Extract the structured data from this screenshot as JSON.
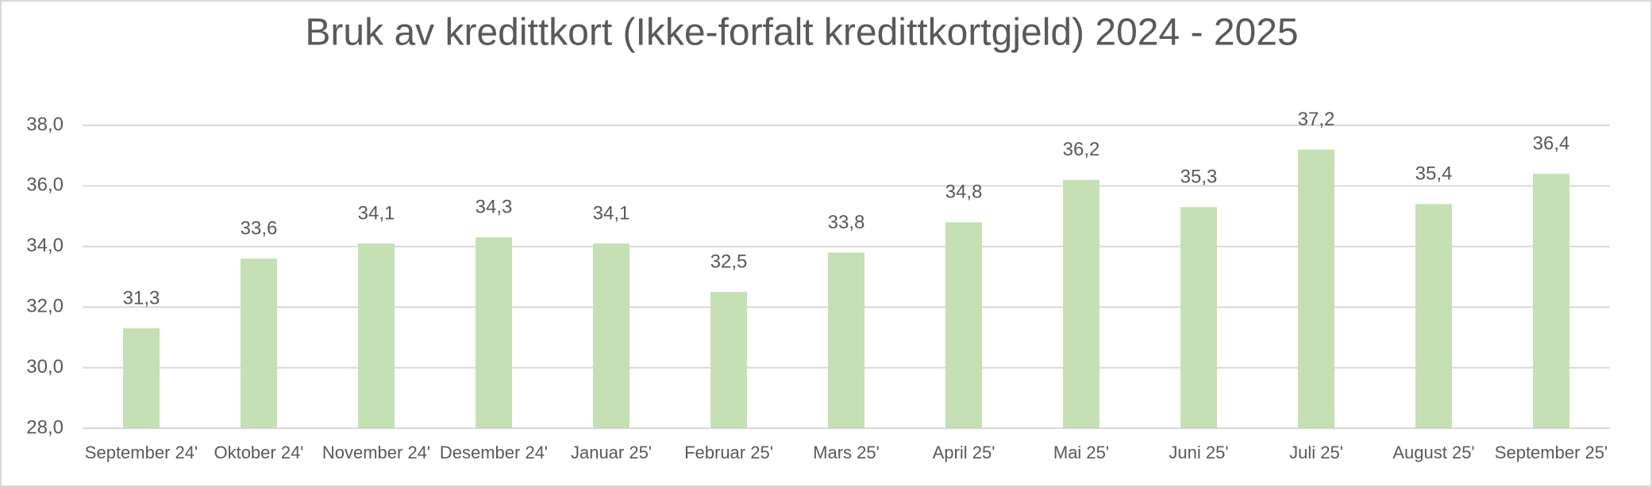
{
  "chart_data": {
    "type": "bar",
    "title": "Bruk av kredittkort (Ikke-forfalt kredittkortgjeld) 2024 - 2025",
    "categories": [
      "September 24'",
      "Oktober 24'",
      "November 24'",
      "Desember 24'",
      "Januar 25'",
      "Februar 25'",
      "Mars 25'",
      "April 25'",
      "Mai 25'",
      "Juni 25'",
      "Juli 25'",
      "August 25'",
      "September 25'"
    ],
    "values": [
      31.3,
      33.6,
      34.1,
      34.3,
      34.1,
      32.5,
      33.8,
      34.8,
      36.2,
      35.3,
      37.2,
      35.4,
      36.4
    ],
    "value_labels": [
      "31,3",
      "33,6",
      "34,1",
      "34,3",
      "34,1",
      "32,5",
      "33,8",
      "34,8",
      "36,2",
      "35,3",
      "37,2",
      "35,4",
      "36,4"
    ],
    "color": "#c5e0b4",
    "ylim": [
      28,
      38
    ],
    "yticks": [
      {
        "value": 28,
        "label": "28,0"
      },
      {
        "value": 30,
        "label": "30,0"
      },
      {
        "value": 32,
        "label": "32,0"
      },
      {
        "value": 34,
        "label": "34,0"
      },
      {
        "value": 36,
        "label": "36,0"
      },
      {
        "value": 38,
        "label": "38,0"
      }
    ],
    "grid": true
  }
}
